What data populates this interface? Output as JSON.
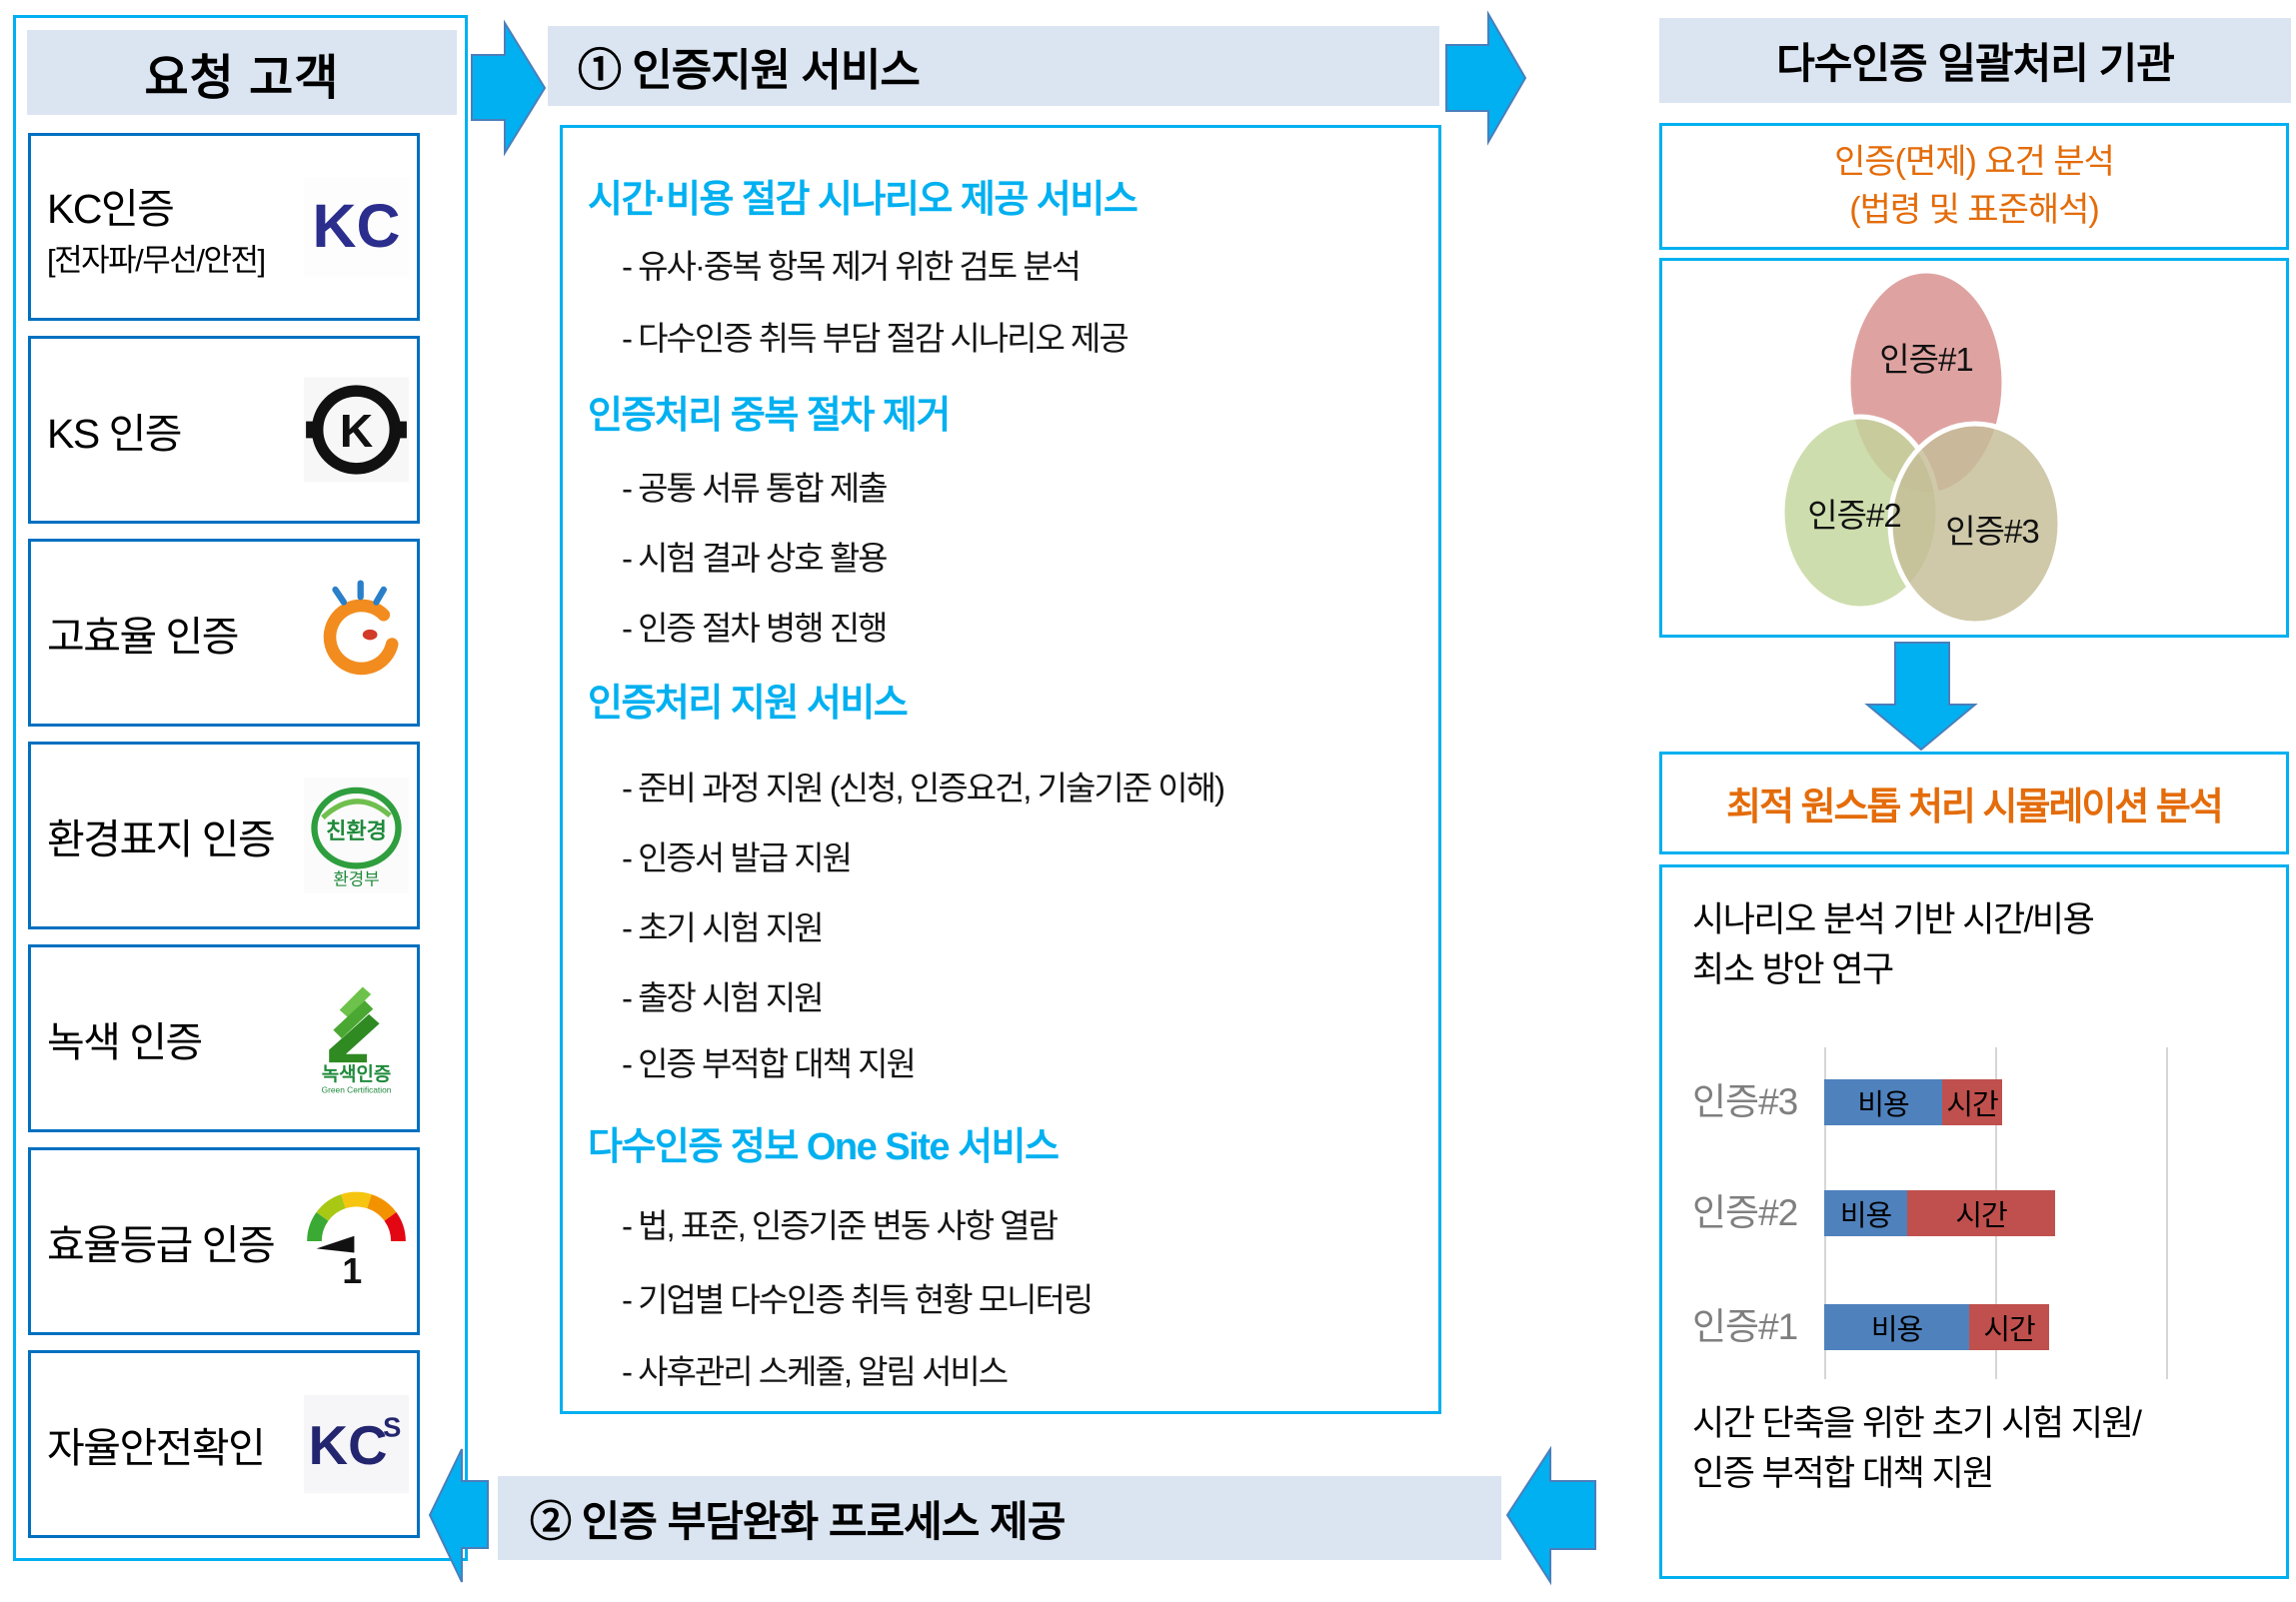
{
  "left_panel": {
    "title": "요청 고객",
    "items": [
      {
        "label": "KC인증",
        "sublabel": "[전자파/무선/안전]",
        "logo": "kc-mark",
        "logo_text": "KC"
      },
      {
        "label": "KS 인증",
        "sublabel": "",
        "logo": "ks-mark",
        "logo_text": "K"
      },
      {
        "label": "고효율 인증",
        "sublabel": "",
        "logo": "high-efficiency-mark",
        "logo_text": ""
      },
      {
        "label": "환경표지 인증",
        "sublabel": "",
        "logo": "eco-label-mark",
        "logo_text": "친환경",
        "logo_subtext": "환경부"
      },
      {
        "label": "녹색 인증",
        "sublabel": "",
        "logo": "green-cert-mark",
        "logo_text": "녹색인증",
        "logo_subtext": "Green Certification"
      },
      {
        "label": "효율등급 인증",
        "sublabel": "",
        "logo": "energy-grade-mark",
        "logo_text": "1"
      },
      {
        "label": "자율안전확인",
        "sublabel": "",
        "logo": "kcs-mark",
        "logo_text": "KC",
        "logo_subtext": "S"
      }
    ]
  },
  "middle_panel": {
    "title": "① 인증지원 서비스",
    "sections": [
      {
        "heading": "시간·비용 절감 시나리오 제공 서비스",
        "items": [
          "- 유사·중복 항목 제거 위한 검토 분석",
          "- 다수인증 취득 부담 절감 시나리오 제공"
        ]
      },
      {
        "heading": "인증처리 중복 절차 제거",
        "items": [
          "- 공통 서류 통합 제출",
          "- 시험 결과 상호 활용",
          "- 인증 절차 병행 진행"
        ]
      },
      {
        "heading": "인증처리 지원 서비스",
        "items": [
          "- 준비 과정 지원 (신청, 인증요건, 기술기준 이해)",
          "- 인증서 발급 지원",
          "- 초기 시험 지원",
          "- 출장 시험 지원",
          "- 인증 부적합 대책 지원"
        ]
      },
      {
        "heading": "다수인증 정보 One Site 서비스",
        "items": [
          "- 법, 표준, 인증기준 변동 사항 열람",
          "- 기업별 다수인증 취득 현황 모니터링",
          "- 사후관리 스케줄, 알림 서비스"
        ]
      }
    ],
    "bottom_banner": "② 인증 부담완화 프로세스 제공"
  },
  "right_panel": {
    "title": "다수인증 일괄처리 기관",
    "analysis_line1": "인증(면제) 요건 분석",
    "analysis_line2": "(법령 및 표준해석)",
    "venn": {
      "labels": [
        "인증#1",
        "인증#2",
        "인증#3"
      ],
      "colors": [
        "#d99694",
        "#c3d69b",
        "#c4bd97"
      ]
    },
    "simulation_title": "최적 원스톱 처리 시뮬레이션 분석",
    "scenario_line1": "시나리오 분석 기반 시간/비용",
    "scenario_line2": "최소 방안 연구",
    "footer_line1": "시간 단축을 위한 초기 시험 지원/",
    "footer_line2": "인증 부적합 대책 지원"
  },
  "chart_data": {
    "type": "bar",
    "orientation": "horizontal",
    "stacked": true,
    "categories": [
      "인증#3",
      "인증#2",
      "인증#1"
    ],
    "series": [
      {
        "name": "비용",
        "color": "#4f81bd",
        "values": [
          0.71,
          0.5,
          0.87
        ]
      },
      {
        "name": "시간",
        "color": "#c0504d",
        "values": [
          0.36,
          0.89,
          0.48
        ]
      }
    ],
    "xlim": [
      0,
      2.05
    ],
    "gridline_interval": 1,
    "grid": true,
    "legend": "labels inside segments"
  },
  "colors": {
    "accent_cyan": "#00b0f0",
    "header_bg": "#dbe5f1",
    "item_border": "#0070c0",
    "heading_blue": "#00b0f0",
    "orange": "#e46c0a",
    "bar_cost": "#4f81bd",
    "bar_time": "#c0504d",
    "venn_1": "#d99694",
    "venn_2": "#c3d69b",
    "venn_3": "#c4bd97"
  }
}
